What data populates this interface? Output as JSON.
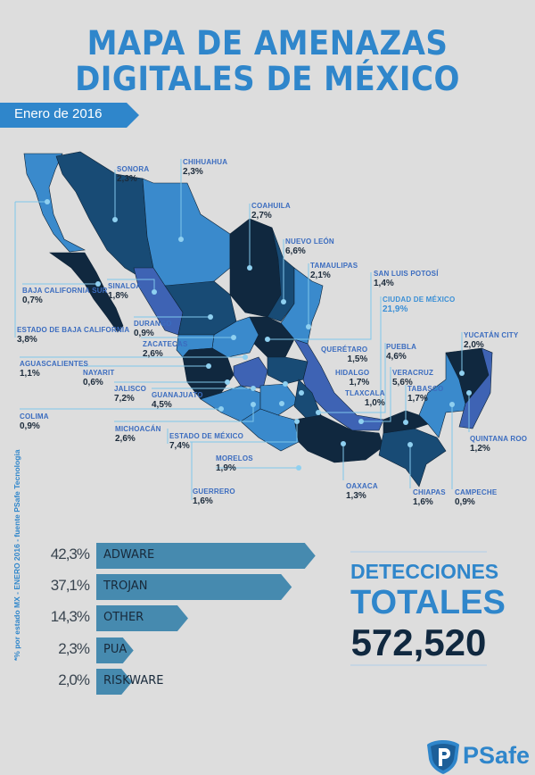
{
  "title": {
    "line1": "MAPA DE AMENAZAS",
    "line2": "DIGITALES DE MÉXICO"
  },
  "date_banner": "Enero de 2016",
  "footnote": "*% por estado MX - ENERO 2016 - fuente PSafe Tecnologia",
  "colors": {
    "background": "#dddddd",
    "accent": "#2f86cb",
    "dark": "#10283f",
    "mid": "#184b75",
    "light": "#3a8acc",
    "violet": "#3e63b4",
    "bar": "#468aaf"
  },
  "states": [
    {
      "name": "SONORA",
      "value": "2,3%"
    },
    {
      "name": "CHIHUAHUA",
      "value": "2,3%"
    },
    {
      "name": "COAHUILA",
      "value": "2,7%"
    },
    {
      "name": "NUEVO LEÓN",
      "value": "6,6%"
    },
    {
      "name": "TAMAULIPAS",
      "value": "2,1%"
    },
    {
      "name": "SAN LUIS POTOSÍ",
      "value": "1,4%"
    },
    {
      "name": "CIUDAD DE MÉXICO",
      "value": "21,9%"
    },
    {
      "name": "BAJA CALIFORNIA SUR",
      "value": "0,7%"
    },
    {
      "name": "SINALOA",
      "value": "1,8%"
    },
    {
      "name": "DURANGO",
      "value": "0,9%"
    },
    {
      "name": "ESTADO DE BAJA CALIFORNIA",
      "value": "3,8%"
    },
    {
      "name": "ZACATECAS",
      "value": "2,6%"
    },
    {
      "name": "AGUASCALIENTES",
      "value": "1,1%"
    },
    {
      "name": "NAYARIT",
      "value": "0,6%"
    },
    {
      "name": "JALISCO",
      "value": "7,2%"
    },
    {
      "name": "GUANAJUATO",
      "value": "4,5%"
    },
    {
      "name": "COLIMA",
      "value": "0,9%"
    },
    {
      "name": "MICHOACÁN",
      "value": "2,6%"
    },
    {
      "name": "ESTADO DE MÉXICO",
      "value": "7,4%"
    },
    {
      "name": "MORELOS",
      "value": "1,9%"
    },
    {
      "name": "GUERRERO",
      "value": "1,6%"
    },
    {
      "name": "QUERÉTARO",
      "value": "1,5%"
    },
    {
      "name": "HIDALGO",
      "value": "1,7%"
    },
    {
      "name": "TLAXCALA",
      "value": "1,0%"
    },
    {
      "name": "PUEBLA",
      "value": "4,6%"
    },
    {
      "name": "VERACRUZ",
      "value": "5,6%"
    },
    {
      "name": "TABASCO",
      "value": "1,7%"
    },
    {
      "name": "YUCATÁN CITY",
      "value": "2,0%"
    },
    {
      "name": "QUINTANA ROO",
      "value": "1,2%"
    },
    {
      "name": "OAXACA",
      "value": "1,3%"
    },
    {
      "name": "CHIAPAS",
      "value": "1,6%"
    },
    {
      "name": "CAMPECHE",
      "value": "0,9%"
    }
  ],
  "chart_data": {
    "type": "bar",
    "orientation": "horizontal",
    "categories": [
      "ADWARE",
      "TROJAN",
      "OTHER",
      "PUA",
      "RISKWARE"
    ],
    "values": [
      42.3,
      37.1,
      14.3,
      2.3,
      2.0
    ],
    "value_labels": [
      "42,3%",
      "37,1%",
      "14,3%",
      "2,3%",
      "2,0%"
    ],
    "color": "#468aaf"
  },
  "totals": {
    "line1": "DETECCIONES",
    "line2": "TOTALES",
    "value": "572,520"
  },
  "logo": {
    "text": "PSafe",
    "icon": "shield-p-icon"
  }
}
